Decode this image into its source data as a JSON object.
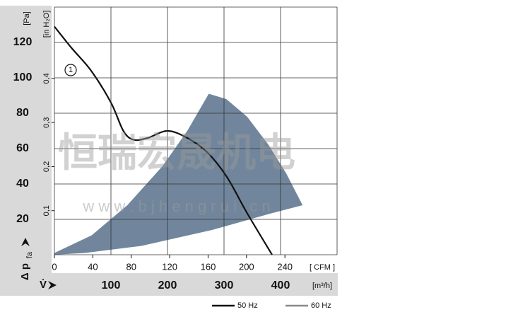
{
  "chart_data": {
    "type": "line",
    "y_unit": "[Pa]",
    "y2_unit": "[in H₂O]",
    "y_symbol": "Δ p",
    "y_symbol_sub": "fa",
    "x_symbol": "V̇",
    "x_unit": "[m³/h]",
    "x2_unit": "[ CFM ]",
    "watermark": "恒瑞宏晟机电",
    "watermark_url": "w w w . b j h e n g r u i . c n",
    "curve_label": "1",
    "xlim": [
      0,
      500
    ],
    "xticks": [
      100,
      200,
      300,
      400
    ],
    "x2lim": [
      0,
      294.3
    ],
    "x2ticks": [
      0,
      40,
      80,
      120,
      160,
      200,
      240
    ],
    "ylim": [
      0,
      140
    ],
    "yticks": [
      20,
      40,
      60,
      80,
      100,
      120
    ],
    "y2lim": [
      0,
      0.562
    ],
    "y2ticks": [
      {
        "value": 0.1,
        "label": "0,1"
      },
      {
        "value": 0.2,
        "label": "0,2"
      },
      {
        "value": 0.3,
        "label": "0,3"
      },
      {
        "value": 0.4,
        "label": "0,4"
      }
    ],
    "grid": true,
    "series": [
      {
        "name": "50 Hz",
        "color": "#111111",
        "fill": false,
        "x": [
          0,
          30,
          65,
          100,
          122,
          140,
          165,
          200,
          235,
          270,
          305,
          340,
          385
        ],
        "values": [
          129,
          117,
          104,
          86,
          70,
          65,
          66,
          70,
          66,
          58,
          44,
          24,
          0
        ]
      },
      {
        "name": "60 Hz",
        "color": "#71869c",
        "fill": true,
        "x": [
          0,
          66,
          129,
          191,
          235,
          273,
          304,
          341,
          379,
          410,
          439,
          379,
          279,
          154,
          54,
          0
        ],
        "values": [
          1,
          11,
          28,
          50,
          70,
          91,
          88,
          78,
          62,
          46,
          28,
          23,
          14,
          5,
          1,
          0
        ]
      }
    ]
  }
}
